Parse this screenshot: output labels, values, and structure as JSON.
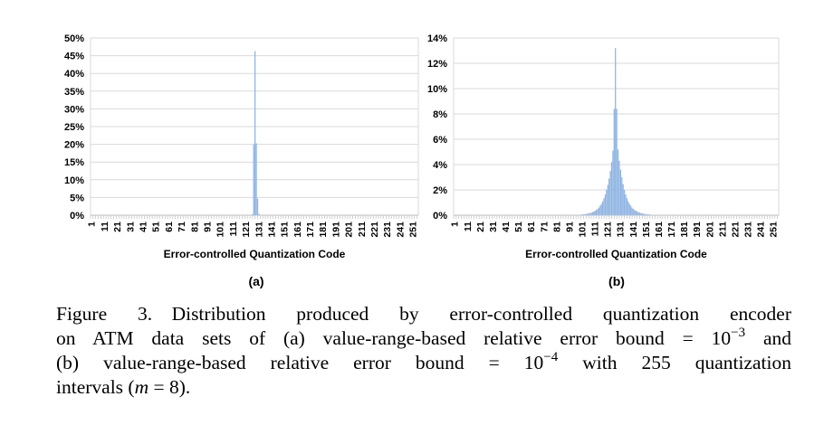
{
  "chart_data": [
    {
      "type": "bar",
      "panel_label": "(a)",
      "xlabel": "Error-controlled Quantization Code",
      "ylabel": "",
      "ylim": [
        0,
        50
      ],
      "yticks": [
        0,
        5,
        10,
        15,
        20,
        25,
        30,
        35,
        40,
        45,
        50
      ],
      "ytick_labels": [
        "0%",
        "5%",
        "10%",
        "15%",
        "20%",
        "25%",
        "30%",
        "35%",
        "40%",
        "45%",
        "50%"
      ],
      "xticks": [
        1,
        11,
        21,
        31,
        41,
        51,
        61,
        71,
        81,
        91,
        101,
        111,
        121,
        131,
        141,
        151,
        161,
        171,
        181,
        191,
        201,
        211,
        221,
        231,
        241,
        251
      ],
      "grid": true,
      "bar_color": "#8eb4e3",
      "values_percent": {
        "126": 0.3,
        "127": 20.0,
        "128": 46.3,
        "129": 20.3,
        "130": 4.7,
        "131": 0.4
      }
    },
    {
      "type": "bar",
      "panel_label": "(b)",
      "xlabel": "Error-controlled Quantization Code",
      "ylabel": "",
      "ylim": [
        0,
        14
      ],
      "yticks": [
        0,
        2,
        4,
        6,
        8,
        10,
        12,
        14
      ],
      "ytick_labels": [
        "0%",
        "2%",
        "4%",
        "6%",
        "8%",
        "10%",
        "12%",
        "14%"
      ],
      "xticks": [
        1,
        11,
        21,
        31,
        41,
        51,
        61,
        71,
        81,
        91,
        101,
        111,
        121,
        131,
        141,
        151,
        161,
        171,
        181,
        191,
        201,
        211,
        221,
        231,
        241,
        251
      ],
      "grid": true,
      "bar_color": "#8eb4e3",
      "values_percent": {
        "100": 0.05,
        "101": 0.06,
        "102": 0.07,
        "103": 0.08,
        "104": 0.1,
        "105": 0.12,
        "106": 0.14,
        "107": 0.17,
        "108": 0.2,
        "109": 0.24,
        "110": 0.29,
        "111": 0.35,
        "112": 0.42,
        "113": 0.5,
        "114": 0.6,
        "115": 0.75,
        "116": 0.9,
        "117": 1.1,
        "118": 1.35,
        "119": 1.65,
        "120": 2.0,
        "121": 2.4,
        "122": 2.9,
        "123": 3.5,
        "124": 4.2,
        "125": 5.1,
        "126": 8.4,
        "127": 13.2,
        "128": 8.4,
        "129": 5.2,
        "130": 4.3,
        "131": 3.6,
        "132": 3.0,
        "133": 2.45,
        "134": 2.0,
        "135": 1.65,
        "136": 1.35,
        "137": 1.1,
        "138": 0.9,
        "139": 0.75,
        "140": 0.6,
        "141": 0.5,
        "142": 0.42,
        "143": 0.35,
        "144": 0.29,
        "145": 0.24,
        "146": 0.2,
        "147": 0.17,
        "148": 0.14,
        "149": 0.12,
        "150": 0.1,
        "151": 0.08,
        "152": 0.07,
        "153": 0.06,
        "154": 0.05
      }
    }
  ],
  "caption": {
    "line1": "Figure 3. Distribution produced by error-controlled quantization encoder",
    "line2": "on ATM data sets of (a) value-range-based relative error bound = 10",
    "exp1": "−3",
    "line2_end": " and",
    "line3": "(b) value-range-based relative error bound = 10",
    "exp2": "−4",
    "line3_end": " with 255 quantization",
    "line4_pre": "intervals (",
    "line4_math": "m",
    "line4_post": " = 8)."
  }
}
